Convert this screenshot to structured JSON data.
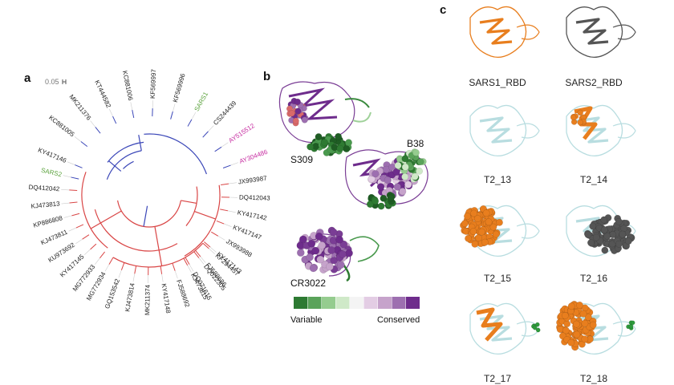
{
  "panels": {
    "a": "a",
    "b": "b",
    "c": "c"
  },
  "scale_bar": "0.05",
  "tree": {
    "top_leaves": [
      {
        "name": "KC881005",
        "color": "#222222"
      },
      {
        "name": "MK211376",
        "color": "#222222"
      },
      {
        "name": "KT444582",
        "color": "#222222"
      },
      {
        "name": "KC881006",
        "color": "#222222"
      },
      {
        "name": "KF569997",
        "color": "#222222"
      },
      {
        "name": "KF569996",
        "color": "#222222"
      },
      {
        "name": "SARS1",
        "color": "#5ca33e"
      },
      {
        "name": "CS244439",
        "color": "#222222"
      },
      {
        "name": "AY515512",
        "color": "#c62ba0"
      },
      {
        "name": "AY304486",
        "color": "#c62ba0"
      }
    ],
    "left_leaves": [
      {
        "name": "KY417146",
        "color": "#222222"
      },
      {
        "name": "SARS2",
        "color": "#5ca33e"
      },
      {
        "name": "DQ412042",
        "color": "#222222"
      },
      {
        "name": "KJ473813",
        "color": "#222222"
      },
      {
        "name": "KP886808",
        "color": "#222222"
      },
      {
        "name": "KJ473811",
        "color": "#222222"
      },
      {
        "name": "KU973692",
        "color": "#222222"
      },
      {
        "name": "KY417145",
        "color": "#222222"
      },
      {
        "name": "MG772933",
        "color": "#222222"
      }
    ],
    "bottom_leaves": [
      {
        "name": "MG772934",
        "color": "#222222"
      },
      {
        "name": "GQ153542",
        "color": "#222222"
      },
      {
        "name": "KJ473814",
        "color": "#222222"
      },
      {
        "name": "MK211374",
        "color": "#222222"
      },
      {
        "name": "KY417148",
        "color": "#222222"
      },
      {
        "name": "FJ588692",
        "color": "#222222"
      },
      {
        "name": "KJ473815",
        "color": "#222222"
      },
      {
        "name": "DQ022305",
        "color": "#222222"
      },
      {
        "name": "KF294457",
        "color": "#222222"
      }
    ],
    "right_leaves": [
      {
        "name": "JX993987",
        "color": "#222222"
      },
      {
        "name": "DQ412043",
        "color": "#222222"
      },
      {
        "name": "KY417142",
        "color": "#222222"
      },
      {
        "name": "KY417147",
        "color": "#222222"
      },
      {
        "name": "JX993988",
        "color": "#222222"
      },
      {
        "name": "KY417143",
        "color": "#222222"
      },
      {
        "name": "FJ588686",
        "color": "#222222"
      },
      {
        "name": "DQ071615",
        "color": "#222222"
      }
    ],
    "clade_colors": {
      "blue": "#3b47b8",
      "red": "#d94545"
    }
  },
  "structures_b": {
    "labels": [
      "S309",
      "B38",
      "CR3022"
    ],
    "legend_low": "Variable",
    "legend_high": "Conserved",
    "legend_colors": [
      "#2d7a32",
      "#5aa35a",
      "#95cc8f",
      "#cfe9c8",
      "#f4f4f4",
      "#e3cde4",
      "#c6a3cb",
      "#9d6fb0",
      "#6e2c8c"
    ]
  },
  "structures_c": {
    "items": [
      {
        "label": "SARS1_RBD",
        "style": "orange"
      },
      {
        "label": "SARS2_RBD",
        "style": "gray"
      },
      {
        "label": "T2_13",
        "style": "plain"
      },
      {
        "label": "T2_14",
        "style": "orange-partial"
      },
      {
        "label": "T2_15",
        "style": "orange-blob"
      },
      {
        "label": "T2_16",
        "style": "gray-blob"
      },
      {
        "label": "T2_17",
        "style": "orange-green"
      },
      {
        "label": "T2_18",
        "style": "orange-spheres"
      }
    ],
    "colors": {
      "orange": "#e87e1e",
      "gray": "#555555",
      "ribbon": "#b8dde0",
      "green": "#2e9a3c",
      "purple": "#6e2c8c",
      "darkgreen": "#1f5d24"
    }
  }
}
